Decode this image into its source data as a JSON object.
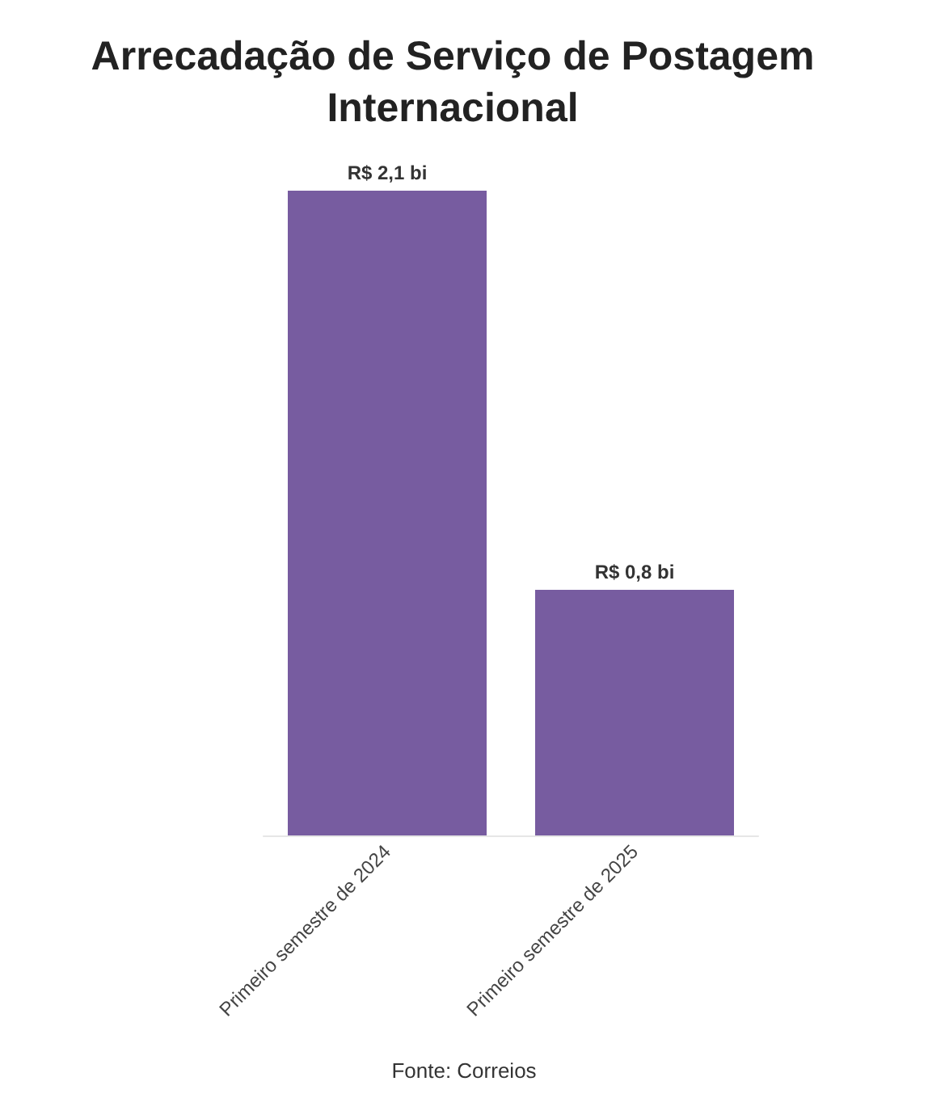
{
  "chart_data": {
    "type": "bar",
    "title": "Arrecadação de Serviço de Postagem\nInternacional",
    "categories": [
      "Primeiro semestre de 2024",
      "Primeiro semestre de 2025"
    ],
    "values": [
      2.1,
      0.8
    ],
    "value_labels": [
      "R$ 2,1 bi",
      "R$ 0,8 bi"
    ],
    "color": "#775ca0",
    "tick_labels": "x",
    "annotations": [
      "Fonte: Correios"
    ]
  }
}
